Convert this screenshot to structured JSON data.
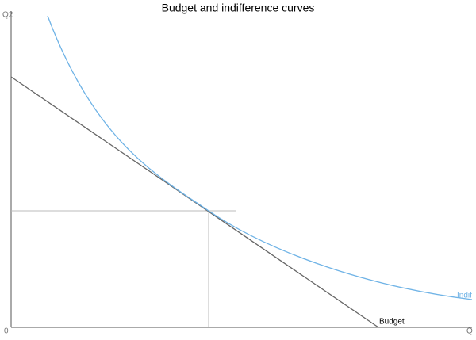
{
  "title": "Budget and indifference curves",
  "axes": {
    "y_label": "Q2",
    "x_label": "Q",
    "origin_label": "0"
  },
  "curves": {
    "budget_label": "Budget",
    "indifference_label": "Indif"
  }
}
